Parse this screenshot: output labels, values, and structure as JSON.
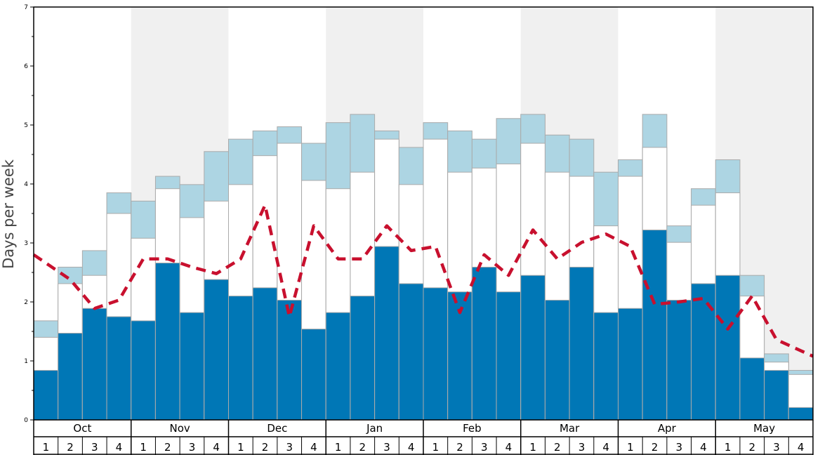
{
  "chart_data": {
    "type": "bar",
    "title": "",
    "ylabel": "Days per week",
    "ylim": [
      0,
      7
    ],
    "yticks": [
      "0",
      "1",
      "2",
      "3",
      "4",
      "5",
      "6",
      "7"
    ],
    "months": [
      "Oct",
      "Nov",
      "Dec",
      "Jan",
      "Feb",
      "Mar",
      "Apr",
      "May"
    ],
    "weeks": [
      "1",
      "2",
      "3",
      "4"
    ],
    "colors": {
      "bottom": "#0077b6",
      "middle": "#ffffff",
      "top": "#add5e3",
      "line": "#c8102e",
      "band": "#f0f0f0",
      "bar_border": "#aaaaaa"
    },
    "series": [
      {
        "values": [
          0.84,
          1.47,
          1.89,
          1.75,
          1.68,
          2.66,
          1.82,
          2.38,
          2.1,
          2.24,
          2.03,
          1.54,
          1.82,
          2.1,
          2.94,
          2.31,
          2.24,
          2.17,
          2.59,
          2.17,
          2.45,
          2.03,
          2.59,
          1.82,
          1.89,
          3.22,
          2.03,
          2.31,
          2.45,
          1.05,
          0.84,
          0.21
        ]
      },
      {
        "values": [
          1.4,
          2.31,
          2.45,
          3.5,
          3.08,
          3.92,
          3.43,
          3.71,
          3.99,
          4.48,
          4.69,
          4.06,
          3.92,
          4.2,
          4.76,
          3.99,
          4.76,
          4.2,
          4.27,
          4.34,
          4.69,
          4.2,
          4.13,
          3.29,
          4.13,
          4.62,
          3.01,
          3.64,
          3.85,
          2.1,
          0.98,
          0.77
        ]
      },
      {
        "values": [
          1.68,
          2.59,
          2.87,
          3.85,
          3.71,
          4.13,
          3.99,
          4.55,
          4.76,
          4.9,
          4.97,
          4.69,
          5.04,
          5.18,
          4.9,
          4.62,
          5.04,
          4.9,
          4.76,
          5.11,
          5.18,
          4.83,
          4.76,
          4.2,
          4.41,
          5.18,
          3.29,
          3.92,
          4.41,
          2.45,
          1.12,
          0.84
        ]
      },
      {
        "values": [
          2.8,
          2.38,
          1.89,
          2.03,
          2.73,
          2.73,
          2.59,
          2.48,
          2.73,
          3.64,
          1.75,
          3.29,
          2.73,
          2.73,
          3.29,
          2.87,
          2.94,
          1.82,
          2.8,
          2.45,
          3.22,
          2.73,
          3.01,
          3.15,
          2.94,
          1.96,
          2.0,
          2.06,
          1.54,
          2.1,
          1.36,
          1.08
        ]
      }
    ]
  }
}
